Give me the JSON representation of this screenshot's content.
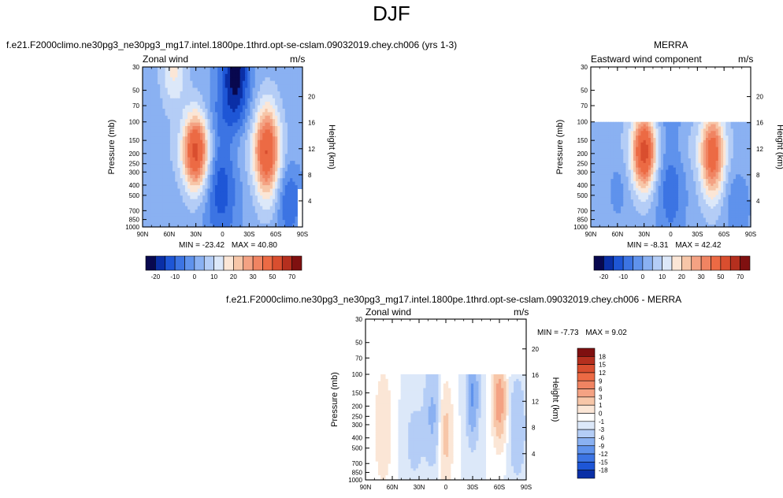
{
  "figure": {
    "title": "DJF"
  },
  "colors": {
    "full_scale": [
      "#08084f",
      "#0a2fa6",
      "#1e56d6",
      "#3c74e3",
      "#5f92ec",
      "#8ab1f2",
      "#b4cdf6",
      "#dce8f9",
      "#fbe6d6",
      "#f7c6a8",
      "#f4a283",
      "#f08462",
      "#ec6a44",
      "#d94e2f",
      "#b52f1e",
      "#7f1010"
    ],
    "diff_scale": [
      "#08084f",
      "#0a2fa6",
      "#1e56d6",
      "#3c74e3",
      "#5f92ec",
      "#8ab1f2",
      "#b4cdf6",
      "#dce8f9",
      "#ffffff",
      "#fbe6d6",
      "#f7c6a8",
      "#f4a283",
      "#f08462",
      "#ec6a44",
      "#d94e2f",
      "#b52f1e",
      "#7f1010"
    ]
  },
  "chart_data": [
    {
      "id": "model",
      "type": "heatmap",
      "title": "f.e21.F2000climo.ne30pg3_ne30pg3_mg17.intel.1800pe.1thrd.opt-se-cslam.09032019.chey.ch006 (yrs 1-3)",
      "left_label": "Zonal wind",
      "units": "m/s",
      "ylabel": "Pressure (mb)",
      "y2label": "Height (km)",
      "x_ticks": [
        "90N",
        "60N",
        "30N",
        "0",
        "30S",
        "60S",
        "90S"
      ],
      "y_ticks": [
        "30",
        "50",
        "70",
        "100",
        "150",
        "200",
        "250",
        "300",
        "400",
        "500",
        "700",
        "850",
        "1000"
      ],
      "y2_ticks": [
        "20",
        "16",
        "12",
        "8",
        "4"
      ],
      "stats": {
        "min_label": "MIN =",
        "min": "-23.42",
        "max_label": "MAX =",
        "max": "40.80"
      },
      "colorbar_labels": [
        "-20",
        "-10",
        "0",
        "10",
        "20",
        "30",
        "50",
        "70"
      ],
      "top_pressure": 30
    },
    {
      "id": "obs",
      "type": "heatmap",
      "title": "MERRA",
      "left_label": "Eastward wind component",
      "units": "m/s",
      "ylabel": "Pressure (mb)",
      "y2label": "Height (km)",
      "x_ticks": [
        "90N",
        "60N",
        "30N",
        "0",
        "30S",
        "60S",
        "90S"
      ],
      "y_ticks": [
        "30",
        "50",
        "70",
        "100",
        "150",
        "200",
        "250",
        "300",
        "400",
        "500",
        "700",
        "850",
        "1000"
      ],
      "y2_ticks": [
        "20",
        "16",
        "12",
        "8",
        "4"
      ],
      "stats": {
        "min_label": "MIN =",
        "min": "-8.31",
        "max_label": "MAX =",
        "max": "42.42"
      },
      "colorbar_labels": [
        "-20",
        "-10",
        "0",
        "10",
        "20",
        "30",
        "50",
        "70"
      ],
      "top_pressure": 100
    },
    {
      "id": "diff",
      "type": "heatmap",
      "title": "f.e21.F2000climo.ne30pg3_ne30pg3_mg17.intel.1800pe.1thrd.opt-se-cslam.09032019.chey.ch006 - MERRA",
      "left_label": "Zonal wind",
      "units": "m/s",
      "ylabel": "Pressure (mb)",
      "y2label": "Height (km)",
      "x_ticks": [
        "90N",
        "60N",
        "30N",
        "0",
        "30S",
        "60S",
        "90S"
      ],
      "y_ticks": [
        "30",
        "50",
        "70",
        "100",
        "150",
        "200",
        "250",
        "300",
        "400",
        "500",
        "700",
        "850",
        "1000"
      ],
      "y2_ticks": [
        "20",
        "16",
        "12",
        "8",
        "4"
      ],
      "stats": {
        "min_label": "MIN =",
        "min": "-7.73",
        "max_label": "MAX =",
        "max": "9.02"
      },
      "colorbar_labels": [
        "18",
        "15",
        "12",
        "9",
        "6",
        "3",
        "1",
        "0",
        "-1",
        "-3",
        "-6",
        "-9",
        "-12",
        "-15",
        "-18"
      ],
      "top_pressure": 100
    }
  ]
}
